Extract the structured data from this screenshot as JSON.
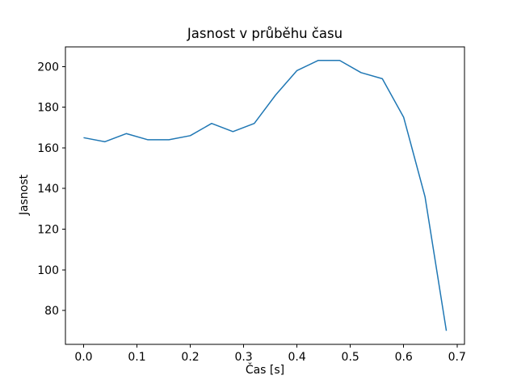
{
  "chart_data": {
    "type": "line",
    "title": "Jasnost v průběhu času",
    "xlabel": "Čas [s]",
    "ylabel": "Jasnost",
    "x": [
      0.0,
      0.04,
      0.08,
      0.12,
      0.16,
      0.2,
      0.24,
      0.28,
      0.32,
      0.36,
      0.4,
      0.44,
      0.48,
      0.52,
      0.56,
      0.6,
      0.64,
      0.68
    ],
    "values": [
      165,
      163,
      167,
      164,
      164,
      166,
      172,
      168,
      172,
      186,
      198,
      203,
      203,
      197,
      194,
      175,
      136,
      70
    ],
    "xlim": [
      -0.034,
      0.714
    ],
    "ylim": [
      63.35,
      209.65
    ],
    "xticks": [
      0.0,
      0.1,
      0.2,
      0.3,
      0.4,
      0.5,
      0.6,
      0.7
    ],
    "xtick_labels": [
      "0.0",
      "0.1",
      "0.2",
      "0.3",
      "0.4",
      "0.5",
      "0.6",
      "0.7"
    ],
    "yticks": [
      80,
      100,
      120,
      140,
      160,
      180,
      200
    ],
    "ytick_labels": [
      "80",
      "100",
      "120",
      "140",
      "160",
      "180",
      "200"
    ],
    "line_color": "#1f77b4",
    "axis_color": "#000000",
    "background_color": "#ffffff",
    "grid": false,
    "legend": "none"
  }
}
